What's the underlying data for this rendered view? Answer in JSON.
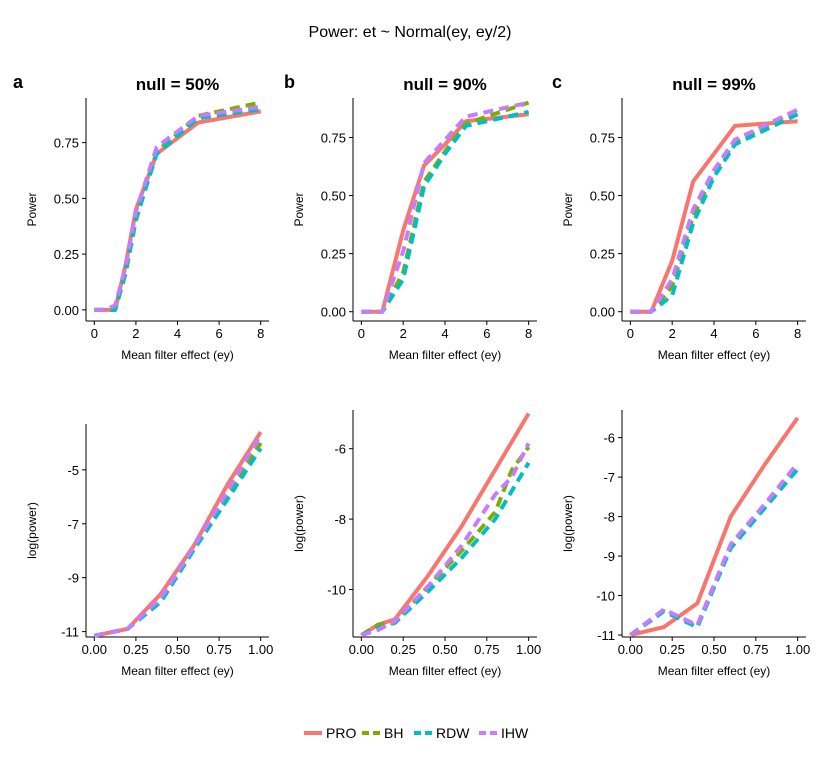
{
  "figure": {
    "title": "Power: et ~ Normal(ey, ey/2)",
    "legend": {
      "placement": "bottom",
      "items": [
        {
          "label": "PRO",
          "color": "#F8766D",
          "dashed": false
        },
        {
          "label": "BH",
          "color": "#7CAE00",
          "dashed": true
        },
        {
          "label": "RDW",
          "color": "#00BFC4",
          "dashed": true
        },
        {
          "label": "IHW",
          "color": "#C77CFF",
          "dashed": true
        }
      ]
    }
  },
  "chart_data": [
    {
      "type": "line",
      "panel_letter": "a",
      "title": "null = 50%",
      "xlabel": "Mean filter effect (ey)",
      "ylabel": "Power",
      "xlim": [
        -0.4,
        8.4
      ],
      "ylim": [
        -0.05,
        0.95
      ],
      "xticks": [
        0,
        2,
        4,
        6,
        8
      ],
      "xtick_labels": [
        "0",
        "2",
        "4",
        "6",
        "8"
      ],
      "yticks": [
        0,
        0.25,
        0.5,
        0.75
      ],
      "ytick_labels": [
        "0.00",
        "0.25",
        "0.50",
        "0.75"
      ],
      "x": [
        0,
        0.5,
        1,
        1.5,
        2,
        3,
        5,
        8
      ],
      "series": [
        {
          "name": "PRO",
          "values": [
            0,
            0,
            0,
            0.2,
            0.45,
            0.7,
            0.84,
            0.89
          ]
        },
        {
          "name": "BH",
          "values": [
            0,
            0,
            0,
            0.16,
            0.4,
            0.71,
            0.87,
            0.93
          ]
        },
        {
          "name": "RDW",
          "values": [
            0,
            0,
            0,
            0.17,
            0.41,
            0.7,
            0.86,
            0.9
          ]
        },
        {
          "name": "IHW",
          "values": [
            0,
            0,
            0.02,
            0.19,
            0.44,
            0.73,
            0.87,
            0.91
          ]
        }
      ]
    },
    {
      "type": "line",
      "panel_letter": "b",
      "title": "null = 90%",
      "xlabel": "Mean filter effect (ey)",
      "ylabel": "Power",
      "xlim": [
        -0.4,
        8.4
      ],
      "ylim": [
        -0.04,
        0.92
      ],
      "xticks": [
        0,
        2,
        4,
        6,
        8
      ],
      "xtick_labels": [
        "0",
        "2",
        "4",
        "6",
        "8"
      ],
      "yticks": [
        0,
        0.25,
        0.5,
        0.75
      ],
      "ytick_labels": [
        "0.00",
        "0.25",
        "0.50",
        "0.75"
      ],
      "x": [
        0,
        1,
        2,
        3,
        4,
        5,
        8
      ],
      "series": [
        {
          "name": "PRO",
          "values": [
            0,
            0,
            0.35,
            0.63,
            0.72,
            0.82,
            0.85
          ]
        },
        {
          "name": "BH",
          "values": [
            0,
            0,
            0.17,
            0.56,
            0.69,
            0.81,
            0.9
          ]
        },
        {
          "name": "RDW",
          "values": [
            0,
            0,
            0.14,
            0.54,
            0.68,
            0.8,
            0.86
          ]
        },
        {
          "name": "IHW",
          "values": [
            0,
            0,
            0.26,
            0.64,
            0.74,
            0.84,
            0.9
          ]
        }
      ]
    },
    {
      "type": "line",
      "panel_letter": "c",
      "title": "null = 99%",
      "xlabel": "Mean filter effect (ey)",
      "ylabel": "Power",
      "xlim": [
        -0.4,
        8.4
      ],
      "ylim": [
        -0.04,
        0.92
      ],
      "xticks": [
        0,
        2,
        4,
        6,
        8
      ],
      "xtick_labels": [
        "0",
        "2",
        "4",
        "6",
        "8"
      ],
      "yticks": [
        0,
        0.25,
        0.5,
        0.75
      ],
      "ytick_labels": [
        "0.00",
        "0.25",
        "0.50",
        "0.75"
      ],
      "x": [
        0,
        1,
        2,
        3,
        4,
        5,
        8
      ],
      "series": [
        {
          "name": "PRO",
          "values": [
            0,
            0,
            0.22,
            0.56,
            0.68,
            0.8,
            0.82
          ]
        },
        {
          "name": "BH",
          "values": [
            0,
            0,
            0.11,
            0.41,
            0.6,
            0.73,
            0.87
          ]
        },
        {
          "name": "RDW",
          "values": [
            0,
            0,
            0.07,
            0.38,
            0.58,
            0.72,
            0.85
          ]
        },
        {
          "name": "IHW",
          "values": [
            0,
            0,
            0.14,
            0.44,
            0.61,
            0.74,
            0.87
          ]
        }
      ]
    },
    {
      "type": "line",
      "panel_letter": "",
      "title": "",
      "xlabel": "Mean filter effect (ey)",
      "ylabel": "log(power)",
      "xlim": [
        -0.05,
        1.05
      ],
      "ylim": [
        -11.2,
        -3.3
      ],
      "xticks": [
        0,
        0.25,
        0.5,
        0.75,
        1
      ],
      "xtick_labels": [
        "0.00",
        "0.25",
        "0.50",
        "0.75",
        "1.00"
      ],
      "yticks": [
        -11,
        -9,
        -7,
        -5
      ],
      "ytick_labels": [
        "-11",
        "-9",
        "-7",
        "-5"
      ],
      "x": [
        0,
        0.2,
        0.4,
        0.6,
        0.8,
        1
      ],
      "series": [
        {
          "name": "PRO",
          "values": [
            -11.15,
            -10.9,
            -9.6,
            -7.8,
            -5.55,
            -3.6
          ]
        },
        {
          "name": "BH",
          "values": [
            -11.15,
            -10.9,
            -9.85,
            -7.9,
            -6.0,
            -4.0
          ]
        },
        {
          "name": "RDW",
          "values": [
            -11.15,
            -10.9,
            -9.9,
            -7.95,
            -6.1,
            -4.2
          ]
        },
        {
          "name": "IHW",
          "values": [
            -11.15,
            -10.9,
            -9.75,
            -7.85,
            -5.8,
            -3.7
          ]
        }
      ]
    },
    {
      "type": "line",
      "panel_letter": "",
      "title": "",
      "xlabel": "Mean filter effect (ey)",
      "ylabel": "log(power)",
      "xlim": [
        -0.05,
        1.05
      ],
      "ylim": [
        -11.35,
        -4.9
      ],
      "xticks": [
        0,
        0.25,
        0.5,
        0.75,
        1
      ],
      "xtick_labels": [
        "0.00",
        "0.25",
        "0.50",
        "0.75",
        "1.00"
      ],
      "yticks": [
        -10,
        -8,
        -6
      ],
      "ytick_labels": [
        "-10",
        "-8",
        "-6"
      ],
      "x": [
        0,
        0.1,
        0.2,
        0.4,
        0.6,
        0.8,
        0.9,
        1
      ],
      "series": [
        {
          "name": "PRO",
          "values": [
            -11.3,
            -11.0,
            -10.85,
            -9.6,
            -8.2,
            -6.6,
            -5.8,
            -5.0
          ]
        },
        {
          "name": "BH",
          "values": [
            -11.3,
            -11.0,
            -10.95,
            -9.9,
            -8.9,
            -7.8,
            -6.6,
            -5.95
          ]
        },
        {
          "name": "RDW",
          "values": [
            -11.3,
            -11.1,
            -10.95,
            -10.05,
            -9.1,
            -8.0,
            -7.2,
            -6.4
          ]
        },
        {
          "name": "IHW",
          "values": [
            -11.3,
            -11.15,
            -10.9,
            -9.9,
            -8.75,
            -7.3,
            -6.8,
            -5.85
          ]
        }
      ]
    },
    {
      "type": "line",
      "panel_letter": "",
      "title": "",
      "xlabel": "Mean filter effect (ey)",
      "ylabel": "log(power)",
      "xlim": [
        -0.05,
        1.05
      ],
      "ylim": [
        -11.05,
        -5.3
      ],
      "xticks": [
        0,
        0.25,
        0.5,
        0.75,
        1
      ],
      "xtick_labels": [
        "0.00",
        "0.25",
        "0.50",
        "0.75",
        "1.00"
      ],
      "yticks": [
        -11,
        -10,
        -9,
        -8,
        -7,
        -6
      ],
      "ytick_labels": [
        "-11",
        "-10",
        "-9",
        "-8",
        "-7",
        "-6"
      ],
      "x": [
        0,
        0.2,
        0.4,
        0.6,
        0.8,
        1
      ],
      "series": [
        {
          "name": "PRO",
          "values": [
            -11.0,
            -10.8,
            -10.2,
            -8.0,
            -6.7,
            -5.5
          ]
        },
        {
          "name": "BH",
          "values": [
            -11.0,
            -10.4,
            -10.8,
            -8.75,
            -7.75,
            -6.7
          ]
        },
        {
          "name": "RDW",
          "values": [
            -11.0,
            -10.4,
            -10.8,
            -8.8,
            -7.8,
            -6.8
          ]
        },
        {
          "name": "IHW",
          "values": [
            -11.0,
            -10.35,
            -10.75,
            -8.7,
            -7.7,
            -6.65
          ]
        }
      ]
    }
  ]
}
